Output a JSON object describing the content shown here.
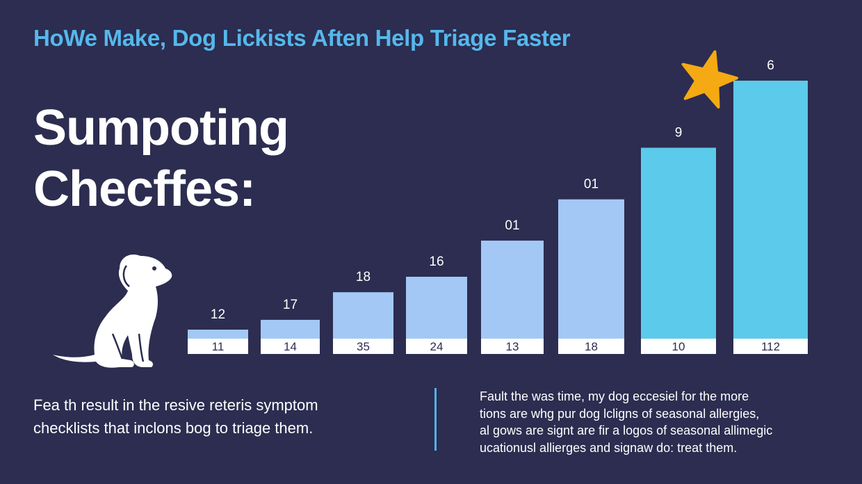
{
  "header": {
    "kicker": "HoWe Make, Dog Lickists Aften Help Triage Faster",
    "headline_line1": "Sumpoting",
    "headline_line2": "Checffes:"
  },
  "chart_data": {
    "type": "bar",
    "title": "",
    "xlabel": "",
    "ylabel": "",
    "categories": [
      "11",
      "14",
      "35",
      "24",
      "13",
      "18",
      "10",
      "112"
    ],
    "top_labels": [
      "12",
      "17",
      "18",
      "16",
      "01",
      "01",
      "9",
      "6"
    ],
    "values": [
      3.5,
      7.3,
      18,
      24,
      38,
      54,
      74,
      100
    ],
    "ylim": [
      0,
      100
    ],
    "grid": false,
    "legend": "none",
    "colors": {
      "light_bar": "#a3c8f5",
      "highlight_bar": "#5ccaea",
      "label_band": "#ffffff",
      "star": "#f5a912"
    },
    "highlighted": [
      6,
      7
    ],
    "annotation_icon": "star-icon"
  },
  "body": {
    "left_line1": "Fea th result in the resive reteris symptom",
    "left_line2": "checklists that inclons bog to triage them.",
    "right_lines": [
      "Fault the was time, my dog eccesiel for the more",
      "tions are whg pur dog lcligns of seasonal allergies,",
      "al gows are signt are fir a logos of seasonal allimegic",
      "ucationusl allierges and signaw do: treat them."
    ]
  },
  "colors": {
    "background": "#2c2d50",
    "accent": "#55b8ec"
  },
  "icons": {
    "dog": "dog-silhouette-icon",
    "star": "star-icon"
  }
}
